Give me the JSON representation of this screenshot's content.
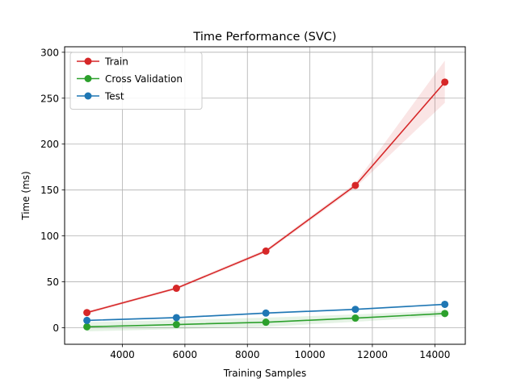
{
  "chart_data": {
    "type": "line",
    "title": "Time Performance (SVC)",
    "xlabel": "Training Samples",
    "ylabel": "Time (ms)",
    "xlim": [
      2150,
      14975
    ],
    "ylim": [
      -18,
      306
    ],
    "xticks": [
      4000,
      6000,
      8000,
      10000,
      12000,
      14000
    ],
    "yticks": [
      0,
      50,
      100,
      150,
      200,
      250,
      300
    ],
    "grid": true,
    "legend_position": "top-left",
    "x": [
      2864,
      5728,
      8592,
      11456,
      14320
    ],
    "series": [
      {
        "name": "Train",
        "color": "#d62728",
        "values": [
          16.5,
          43,
          83.5,
          155,
          267.5
        ],
        "band_lower": [
          15,
          41.5,
          81.5,
          152.5,
          245
        ],
        "band_upper": [
          18,
          44.5,
          85.5,
          157.5,
          291
        ]
      },
      {
        "name": "Cross Validation",
        "color": "#2ca02c",
        "values": [
          1,
          3.5,
          6,
          10.5,
          15.5
        ],
        "band_lower": [
          -4,
          -1.5,
          1,
          6.5,
          12.5
        ],
        "band_upper": [
          6,
          8.5,
          11,
          14.5,
          18.5
        ]
      },
      {
        "name": "Test",
        "color": "#1f77b4",
        "values": [
          8,
          11,
          16,
          20,
          25.5
        ],
        "band_lower": [
          7,
          10,
          15,
          19,
          24.5
        ],
        "band_upper": [
          9,
          12,
          17,
          21,
          26.5
        ]
      }
    ]
  }
}
